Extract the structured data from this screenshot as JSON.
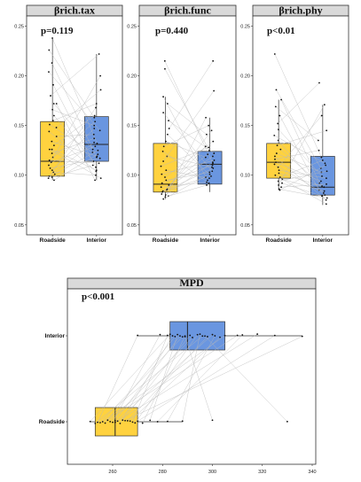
{
  "chart_data": [
    {
      "type": "box",
      "title": "βrich.tax",
      "annotation": "p=0.119",
      "orientation": "vertical",
      "categories": [
        "Roadside",
        "Interior"
      ],
      "ylim": [
        0.04,
        0.255
      ],
      "yticks": [
        0.05,
        0.1,
        0.15,
        0.2,
        0.25
      ],
      "ytick_labels": [
        "0.05",
        "0.10",
        "0.15",
        "0.20",
        "0.25"
      ],
      "boxes": [
        {
          "name": "Roadside",
          "color": "#FFD23F",
          "min": 0.095,
          "q1": 0.099,
          "median": 0.114,
          "q3": 0.154,
          "max": 0.238
        },
        {
          "name": "Interior",
          "color": "#6A96E0",
          "min": 0.095,
          "q1": 0.114,
          "median": 0.131,
          "q3": 0.159,
          "max": 0.222
        }
      ],
      "paired": [
        [
          0.238,
          0.132
        ],
        [
          0.226,
          0.158
        ],
        [
          0.213,
          0.118
        ],
        [
          0.204,
          0.145
        ],
        [
          0.191,
          0.108
        ],
        [
          0.18,
          0.222
        ],
        [
          0.172,
          0.126
        ],
        [
          0.166,
          0.15
        ],
        [
          0.16,
          0.114
        ],
        [
          0.155,
          0.172
        ],
        [
          0.151,
          0.123
        ],
        [
          0.148,
          0.186
        ],
        [
          0.144,
          0.104
        ],
        [
          0.139,
          0.141
        ],
        [
          0.134,
          0.119
        ],
        [
          0.13,
          0.16
        ],
        [
          0.126,
          0.097
        ],
        [
          0.122,
          0.137
        ],
        [
          0.118,
          0.154
        ],
        [
          0.115,
          0.112
        ],
        [
          0.113,
          0.129
        ],
        [
          0.11,
          0.2
        ],
        [
          0.107,
          0.117
        ],
        [
          0.105,
          0.147
        ],
        [
          0.103,
          0.1
        ],
        [
          0.101,
          0.125
        ],
        [
          0.099,
          0.133
        ],
        [
          0.098,
          0.11
        ],
        [
          0.097,
          0.168
        ],
        [
          0.095,
          0.121
        ],
        [
          0.172,
          0.095
        ],
        [
          0.126,
          0.105
        ]
      ]
    },
    {
      "type": "box",
      "title": "βrich.func",
      "annotation": "p=0.440",
      "orientation": "vertical",
      "categories": [
        "Roadside",
        "Interior"
      ],
      "ylim": [
        0.04,
        0.255
      ],
      "yticks": [
        0.05,
        0.1,
        0.15,
        0.2,
        0.25
      ],
      "ytick_labels": [
        "0.05",
        "0.10",
        "0.15",
        "0.20",
        "0.25"
      ],
      "boxes": [
        {
          "name": "Roadside",
          "color": "#FFD23F",
          "min": 0.076,
          "q1": 0.083,
          "median": 0.091,
          "q3": 0.132,
          "max": 0.179
        },
        {
          "name": "Interior",
          "color": "#6A96E0",
          "min": 0.083,
          "q1": 0.091,
          "median": 0.111,
          "q3": 0.124,
          "max": 0.158
        }
      ],
      "paired": [
        [
          0.215,
          0.112
        ],
        [
          0.207,
          0.125
        ],
        [
          0.179,
          0.095
        ],
        [
          0.172,
          0.141
        ],
        [
          0.163,
          0.104
        ],
        [
          0.155,
          0.122
        ],
        [
          0.147,
          0.215
        ],
        [
          0.141,
          0.099
        ],
        [
          0.134,
          0.118
        ],
        [
          0.129,
          0.15
        ],
        [
          0.124,
          0.092
        ],
        [
          0.119,
          0.108
        ],
        [
          0.114,
          0.185
        ],
        [
          0.109,
          0.128
        ],
        [
          0.105,
          0.097
        ],
        [
          0.101,
          0.115
        ],
        [
          0.098,
          0.134
        ],
        [
          0.095,
          0.103
        ],
        [
          0.092,
          0.11
        ],
        [
          0.09,
          0.121
        ],
        [
          0.088,
          0.093
        ],
        [
          0.086,
          0.145
        ],
        [
          0.085,
          0.107
        ],
        [
          0.084,
          0.119
        ],
        [
          0.083,
          0.098
        ],
        [
          0.081,
          0.129
        ],
        [
          0.08,
          0.113
        ],
        [
          0.079,
          0.09
        ],
        [
          0.078,
          0.158
        ],
        [
          0.076,
          0.101
        ]
      ]
    },
    {
      "type": "box",
      "title": "βrich.phy",
      "annotation": "p<0.01",
      "orientation": "vertical",
      "categories": [
        "Roadside",
        "Interior"
      ],
      "ylim": [
        0.04,
        0.255
      ],
      "yticks": [
        0.05,
        0.1,
        0.15,
        0.2,
        0.25
      ],
      "ytick_labels": [
        "0.05",
        "0.10",
        "0.15",
        "0.20",
        "0.25"
      ],
      "boxes": [
        {
          "name": "Roadside",
          "color": "#FFD23F",
          "min": 0.085,
          "q1": 0.097,
          "median": 0.113,
          "q3": 0.132,
          "max": 0.176
        },
        {
          "name": "Interior",
          "color": "#6A96E0",
          "min": 0.07,
          "q1": 0.08,
          "median": 0.088,
          "q3": 0.119,
          "max": 0.171
        }
      ],
      "paired": [
        [
          0.222,
          0.118
        ],
        [
          0.186,
          0.107
        ],
        [
          0.176,
          0.092
        ],
        [
          0.169,
          0.135
        ],
        [
          0.16,
          0.085
        ],
        [
          0.152,
          0.193
        ],
        [
          0.146,
          0.099
        ],
        [
          0.14,
          0.112
        ],
        [
          0.135,
          0.08
        ],
        [
          0.13,
          0.145
        ],
        [
          0.126,
          0.088
        ],
        [
          0.122,
          0.103
        ],
        [
          0.119,
          0.075
        ],
        [
          0.116,
          0.125
        ],
        [
          0.113,
          0.094
        ],
        [
          0.111,
          0.082
        ],
        [
          0.108,
          0.16
        ],
        [
          0.105,
          0.097
        ],
        [
          0.102,
          0.089
        ],
        [
          0.1,
          0.071
        ],
        [
          0.098,
          0.115
        ],
        [
          0.096,
          0.084
        ],
        [
          0.094,
          0.104
        ],
        [
          0.092,
          0.079
        ],
        [
          0.09,
          0.171
        ],
        [
          0.088,
          0.091
        ],
        [
          0.086,
          0.077
        ],
        [
          0.085,
          0.11
        ]
      ]
    },
    {
      "type": "box",
      "title": "MPD",
      "annotation": "p<0.001",
      "orientation": "horizontal",
      "categories": [
        "Roadside",
        "Interior"
      ],
      "xlim": [
        244,
        340
      ],
      "xticks": [
        260,
        280,
        300,
        320,
        340
      ],
      "xtick_labels": [
        "260",
        "280",
        "300",
        "320",
        "340"
      ],
      "boxes": [
        {
          "name": "Roadside",
          "color": "#FFD23F",
          "min": 251,
          "q1": 253,
          "median": 261,
          "q3": 270,
          "max": 288
        },
        {
          "name": "Interior",
          "color": "#6A96E0",
          "min": 270,
          "q1": 283,
          "median": 290,
          "q3": 305,
          "max": 336
        }
      ],
      "paired": [
        [
          251,
          283
        ],
        [
          253,
          296
        ],
        [
          254,
          270
        ],
        [
          255,
          288
        ],
        [
          256,
          305
        ],
        [
          257,
          285
        ],
        [
          258,
          310
        ],
        [
          259,
          292
        ],
        [
          260,
          279
        ],
        [
          261,
          300
        ],
        [
          261,
          287
        ],
        [
          262,
          318
        ],
        [
          263,
          284
        ],
        [
          264,
          291
        ],
        [
          265,
          336
        ],
        [
          266,
          298
        ],
        [
          267,
          303
        ],
        [
          268,
          282
        ],
        [
          269,
          294
        ],
        [
          270,
          325
        ],
        [
          272,
          289
        ],
        [
          275,
          286
        ],
        [
          278,
          312
        ],
        [
          282,
          301
        ],
        [
          288,
          295
        ],
        [
          300,
          289
        ],
        [
          330,
          297
        ]
      ]
    }
  ]
}
